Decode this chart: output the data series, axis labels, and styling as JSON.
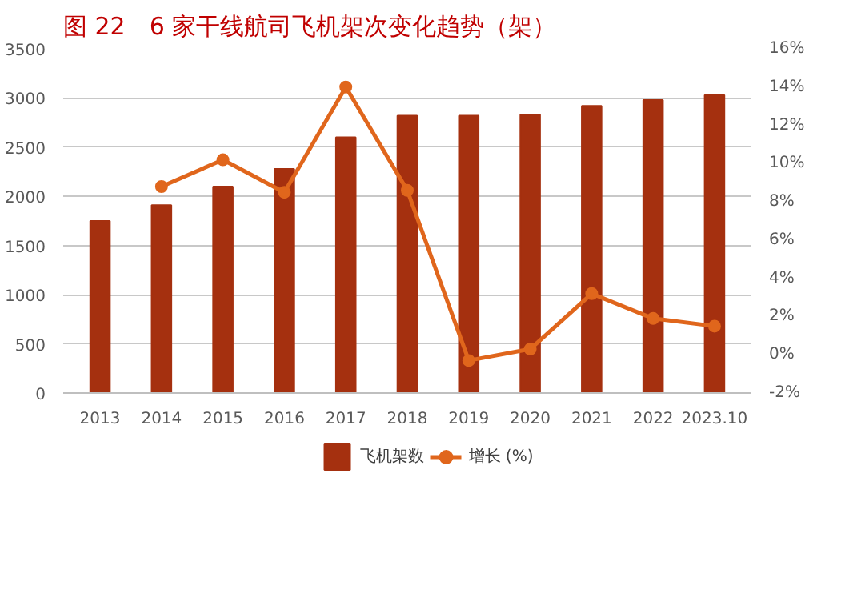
{
  "chart_data": {
    "type": "bar",
    "title": "图 22　6 家干线航司飞机架次变化趋势（架）",
    "categories": [
      "2013",
      "2014",
      "2015",
      "2016",
      "2017",
      "2018",
      "2019",
      "2020",
      "2021",
      "2022",
      "2023.10"
    ],
    "series": [
      {
        "name": "飞机架数",
        "color": "#a5300f",
        "values": [
          1750,
          1910,
          2100,
          2280,
          2600,
          2820,
          2820,
          2830,
          2920,
          2980,
          3030
        ]
      },
      {
        "name": "增长 (%)",
        "type": "line",
        "axis": "y2",
        "color": "#e0661c",
        "values": [
          null,
          8.8,
          10.2,
          8.5,
          14.0,
          8.6,
          -0.3,
          0.3,
          3.2,
          1.9,
          1.5
        ]
      }
    ],
    "ylim": [
      0,
      3500
    ],
    "yticks": [
      0,
      500,
      1000,
      1500,
      2000,
      2500,
      3000,
      3500
    ],
    "y2lim": [
      -2,
      16
    ],
    "y2ticks": [
      {
        "value": -2,
        "label": "-2%"
      },
      {
        "value": 0,
        "label": "0%"
      },
      {
        "value": 2,
        "label": "2%"
      },
      {
        "value": 4,
        "label": "4%"
      },
      {
        "value": 6,
        "label": "6%"
      },
      {
        "value": 8,
        "label": "8%"
      },
      {
        "value": 10,
        "label": "10%"
      },
      {
        "value": 12,
        "label": "12%"
      },
      {
        "value": 14,
        "label": "14%"
      },
      {
        "value": 16,
        "label": "16%"
      }
    ],
    "grid": "y",
    "legend": "bottom",
    "marker": "circle",
    "line_style": "solid"
  }
}
